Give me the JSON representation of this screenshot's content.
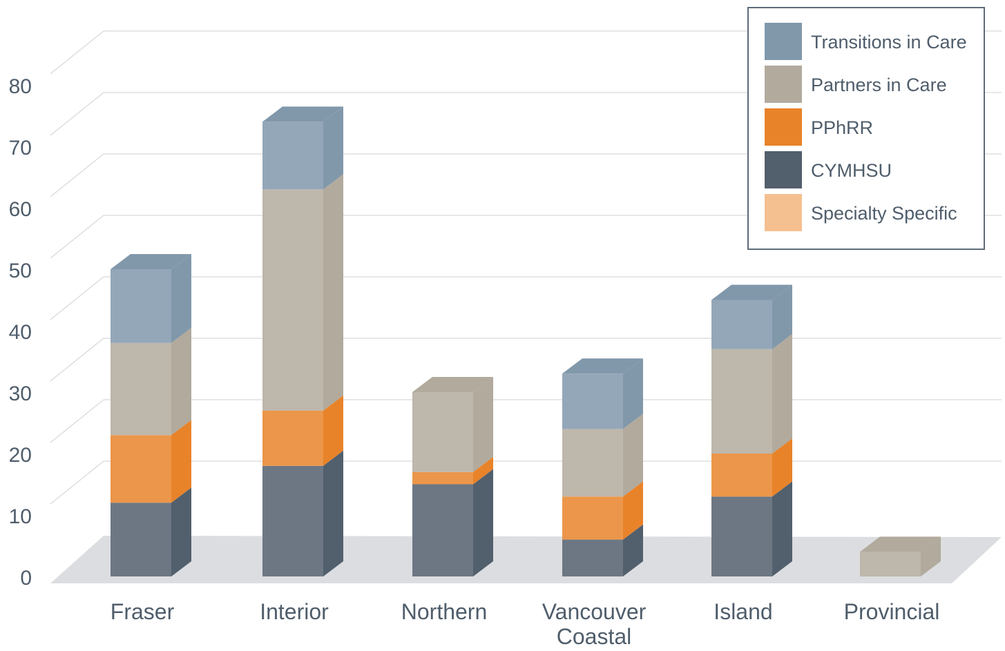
{
  "chart_data": {
    "type": "bar",
    "stacked": true,
    "style": "3d",
    "categories": [
      [
        "Fraser"
      ],
      [
        "Interior"
      ],
      [
        "Northern"
      ],
      [
        "Vancouver",
        "Coastal"
      ],
      [
        "Island"
      ],
      [
        "Provincial"
      ]
    ],
    "series": [
      {
        "name": "CYMHSU",
        "values": [
          12,
          18,
          15,
          6,
          13,
          0
        ],
        "color": "#525f6d"
      },
      {
        "name": "PPhRR",
        "values": [
          11,
          9,
          2,
          7,
          7,
          0
        ],
        "color": "#e8832a"
      },
      {
        "name": "Partners in Care",
        "values": [
          15,
          36,
          13,
          11,
          17,
          4
        ],
        "color": "#b1aa9d"
      },
      {
        "name": "Transitions in Care",
        "values": [
          12,
          11,
          0,
          9,
          8,
          0
        ],
        "color": "#8198ab"
      },
      {
        "name": "Specialty Specific",
        "values": [
          0,
          0,
          0,
          0,
          0,
          0
        ],
        "color": "#f5c090"
      }
    ],
    "ylim": [
      0,
      80
    ],
    "yticks": [
      0,
      10,
      20,
      30,
      40,
      50,
      60,
      70,
      80
    ],
    "legend": {
      "position": "top-right",
      "order": [
        "Transitions in Care",
        "Partners in Care",
        "PPhRR",
        "CYMHSU",
        "Specialty Specific"
      ]
    },
    "grid": true,
    "xlabel": "",
    "ylabel": ""
  }
}
